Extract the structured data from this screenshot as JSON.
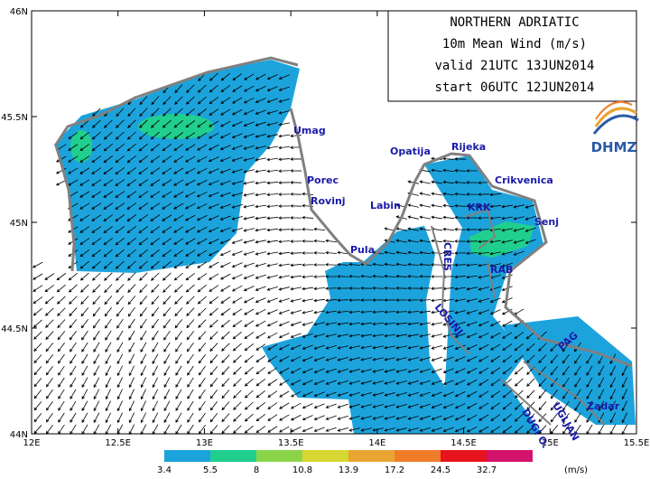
{
  "header": {
    "lines": [
      "NORTHERN ADRIATIC",
      "10m Mean Wind (m/s)",
      "valid 21UTC 13JUN2014",
      "start 06UTC 12JUN2014"
    ]
  },
  "logo": "DHMZ",
  "axes": {
    "x_labels": [
      "12E",
      "12.5E",
      "13E",
      "13.5E",
      "14E",
      "14.5E",
      "15E",
      "15.5E"
    ],
    "y_labels": [
      "46N",
      "45.5N",
      "45N",
      "44.5N",
      "44N"
    ]
  },
  "places": [
    "Umag",
    "Porec",
    "Rovinj",
    "Pula",
    "Labin",
    "Opatija",
    "Rijeka",
    "Crikvenica",
    "KRK",
    "Senj",
    "CRES",
    "RAB",
    "LOSINJ",
    "PAG",
    "Zadar",
    "UGLJAN",
    "DUGI O."
  ],
  "legend": {
    "labels": [
      "3.4",
      "5.5",
      "8",
      "10.8",
      "13.9",
      "17.2",
      "24.5",
      "32.7"
    ],
    "unit": "(m/s)",
    "colors": [
      "#1ca3dc",
      "#20cf8e",
      "#8bd44a",
      "#d8d632",
      "#e8a531",
      "#f07c2a",
      "#e5141d",
      "#d4136b"
    ]
  }
}
